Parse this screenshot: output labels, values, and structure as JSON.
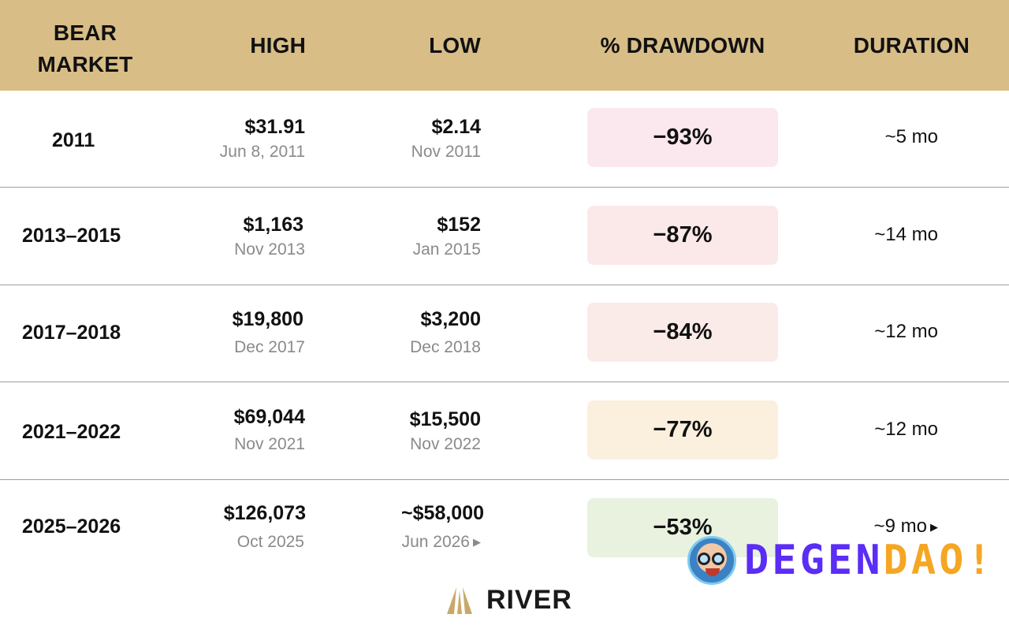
{
  "header": {
    "bear_market": "BEAR MARKET",
    "high": "HIGH",
    "low": "LOW",
    "drawdown": "% DRAWDOWN",
    "duration": "DURATION"
  },
  "rows": [
    {
      "period": "2011",
      "high_price": "$31.91",
      "high_date": "Jun 8, 2011",
      "low_price": "$2.14",
      "low_date": "Nov 2011",
      "drawdown": "−93%",
      "duration": "~5 mo",
      "pill_color": "#fbe8ee"
    },
    {
      "period": "2013–2015",
      "high_price": "$1,163",
      "high_date": "Nov 2013",
      "low_price": "$152",
      "low_date": "Jan 2015",
      "drawdown": "−87%",
      "duration": "~14 mo",
      "pill_color": "#fbe9ea"
    },
    {
      "period": "2017–2018",
      "high_price": "$19,800",
      "high_date": "Dec 2017",
      "low_price": "$3,200",
      "low_date": "Dec 2018",
      "drawdown": "−84%",
      "duration": "~12 mo",
      "pill_color": "#fbebe8"
    },
    {
      "period": "2021–2022",
      "high_price": "$69,044",
      "high_date": "Nov 2021",
      "low_price": "$15,500",
      "low_date": "Nov 2022",
      "drawdown": "−77%",
      "duration": "~12 mo",
      "pill_color": "#fbefde"
    },
    {
      "period": "2025–2026",
      "high_price": "$126,073",
      "high_date": "Oct 2025",
      "low_price": "~$58,000",
      "low_date": "Jun 2026",
      "drawdown": "−53%",
      "duration": "~9 mo",
      "pill_color": "#e8f2df"
    }
  ],
  "footer": {
    "brand": "RIVER",
    "logo_color": "#c9a96a"
  },
  "watermark": {
    "part1": "DEGEN",
    "part2": "DAO!"
  }
}
